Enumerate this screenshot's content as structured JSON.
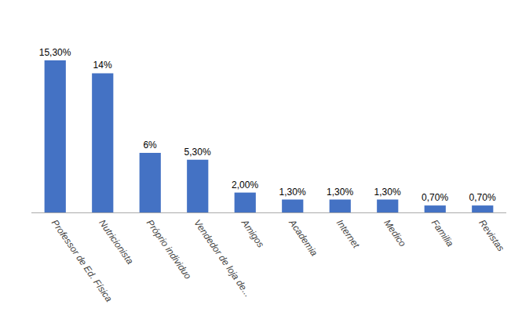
{
  "chart_data": {
    "type": "bar",
    "categories": [
      "Professor de Ed. Física",
      "Nutricionista",
      "Próprio individuo",
      "Vendedor de loja de...",
      "Amigos",
      "Academia",
      "Internet",
      "Medico",
      "Familia",
      "Revistas"
    ],
    "values": [
      15.3,
      14.0,
      6.0,
      5.3,
      2.0,
      1.3,
      1.3,
      1.3,
      0.7,
      0.7
    ],
    "value_labels": [
      "15,30%",
      "14%",
      "6%",
      "5,30%",
      "2,00%",
      "1,30%",
      "1,30%",
      "1,30%",
      "0,70%",
      "0,70%"
    ],
    "data_labels": true,
    "color": "#4472C4",
    "ylim": [
      0,
      19
    ],
    "tick_labels": "x",
    "grid": false
  }
}
